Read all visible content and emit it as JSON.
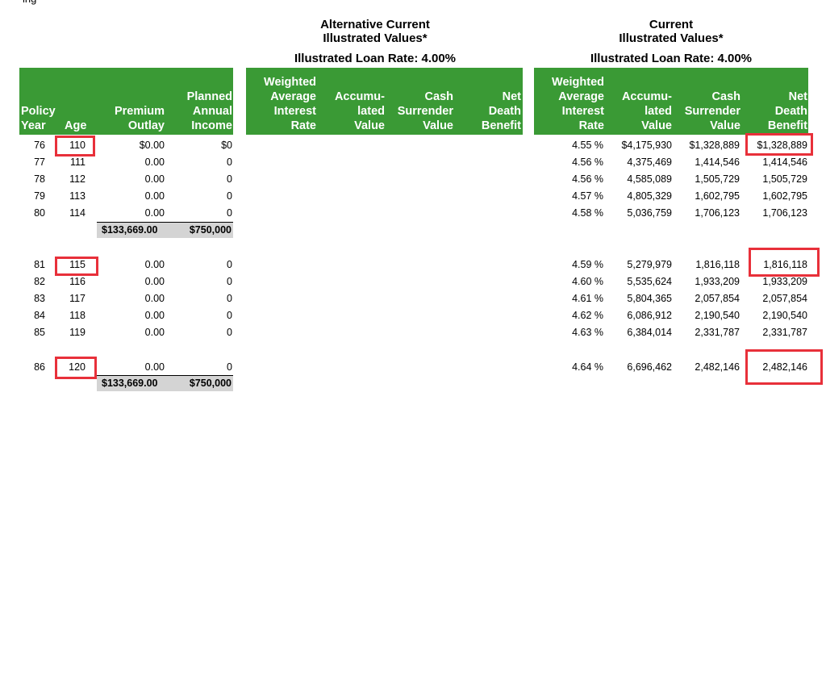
{
  "top_clipped_text": "ing",
  "alt_section": {
    "title_line1": "Alternative Current",
    "title_line2": "Illustrated Values*",
    "loan_rate": "Illustrated Loan Rate: 4.00%"
  },
  "cur_section": {
    "title_line1": "Current",
    "title_line2": "Illustrated Values*",
    "loan_rate": "Illustrated Loan Rate: 4.00%"
  },
  "headers": {
    "policy_year": "Policy\nYear",
    "age": "Age",
    "premium_outlay": "Premium\nOutlay",
    "planned_income": "Planned\nAnnual\nIncome",
    "alt_wair": "Weighted\nAverage\nInterest\nRate",
    "alt_accum": "Accumu-\nlated\nValue",
    "alt_csv": "Cash\nSurrender\nValue",
    "alt_ndb": "Net\nDeath\nBenefit",
    "cur_wair": "Weighted\nAverage\nInterest\nRate",
    "cur_accum": "Accumu-\nlated\nValue",
    "cur_csv": "Cash\nSurrender\nValue",
    "cur_ndb": "Net\nDeath\nBenefit"
  },
  "rows": [
    {
      "year": "76",
      "age": "110",
      "premium": "$0.00",
      "income": "$0",
      "rate": "4.55 %",
      "accum": "$4,175,930",
      "csv": "$1,328,889",
      "ndb": "$1,328,889"
    },
    {
      "year": "77",
      "age": "111",
      "premium": "0.00",
      "income": "0",
      "rate": "4.56 %",
      "accum": "4,375,469",
      "csv": "1,414,546",
      "ndb": "1,414,546"
    },
    {
      "year": "78",
      "age": "112",
      "premium": "0.00",
      "income": "0",
      "rate": "4.56 %",
      "accum": "4,585,089",
      "csv": "1,505,729",
      "ndb": "1,505,729"
    },
    {
      "year": "79",
      "age": "113",
      "premium": "0.00",
      "income": "0",
      "rate": "4.57 %",
      "accum": "4,805,329",
      "csv": "1,602,795",
      "ndb": "1,602,795"
    },
    {
      "year": "80",
      "age": "114",
      "premium": "0.00",
      "income": "0",
      "rate": "4.58 %",
      "accum": "5,036,759",
      "csv": "1,706,123",
      "ndb": "1,706,123"
    },
    {
      "year": "81",
      "age": "115",
      "premium": "0.00",
      "income": "0",
      "rate": "4.59 %",
      "accum": "5,279,979",
      "csv": "1,816,118",
      "ndb": "1,816,118"
    },
    {
      "year": "82",
      "age": "116",
      "premium": "0.00",
      "income": "0",
      "rate": "4.60 %",
      "accum": "5,535,624",
      "csv": "1,933,209",
      "ndb": "1,933,209"
    },
    {
      "year": "83",
      "age": "117",
      "premium": "0.00",
      "income": "0",
      "rate": "4.61 %",
      "accum": "5,804,365",
      "csv": "2,057,854",
      "ndb": "2,057,854"
    },
    {
      "year": "84",
      "age": "118",
      "premium": "0.00",
      "income": "0",
      "rate": "4.62 %",
      "accum": "6,086,912",
      "csv": "2,190,540",
      "ndb": "2,190,540"
    },
    {
      "year": "85",
      "age": "119",
      "premium": "0.00",
      "income": "0",
      "rate": "4.63 %",
      "accum": "6,384,014",
      "csv": "2,331,787",
      "ndb": "2,331,787"
    },
    {
      "year": "86",
      "age": "120",
      "premium": "0.00",
      "income": "0",
      "rate": "4.64 %",
      "accum": "6,696,462",
      "csv": "2,482,146",
      "ndb": "2,482,146"
    }
  ],
  "totals": [
    {
      "premium": "$133,669.00",
      "income": "$750,000"
    },
    {
      "premium": "$133,669.00",
      "income": "$750,000"
    }
  ],
  "colors": {
    "header_green": "#3a9a35",
    "highlight_red": "#e8303a",
    "total_gray": "#d4d4d4"
  }
}
